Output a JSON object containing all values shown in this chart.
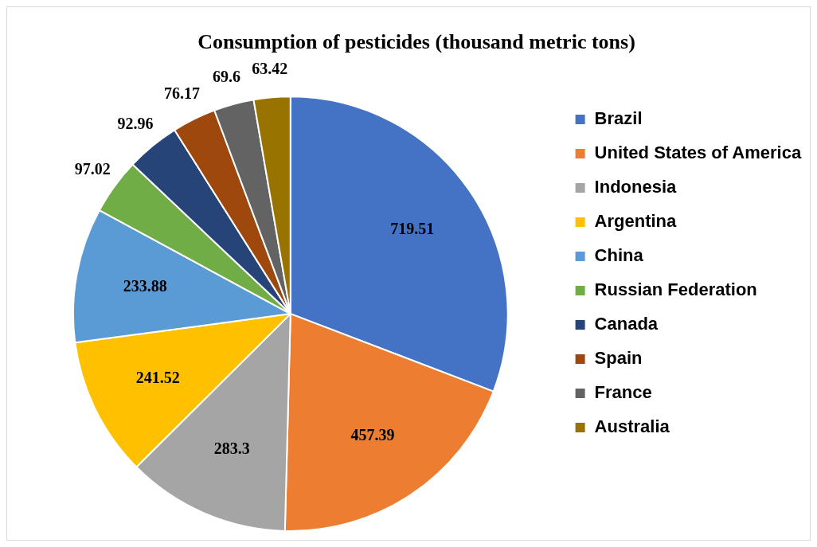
{
  "chart_data": {
    "type": "pie",
    "title": "Consumption of pesticides (thousand metric tons)",
    "categories": [
      "Brazil",
      "United States of America",
      "Indonesia",
      "Argentina",
      "China",
      "Russian Federation",
      "Canada",
      "Spain",
      "France",
      "Australia"
    ],
    "values": [
      719.51,
      457.39,
      283.3,
      241.52,
      233.88,
      97.02,
      92.96,
      76.17,
      69.6,
      63.42
    ],
    "colors": [
      "#4472c4",
      "#ed7d31",
      "#a5a5a5",
      "#ffc000",
      "#5b9bd5",
      "#70ad47",
      "#264478",
      "#9e480e",
      "#636363",
      "#997300"
    ],
    "data_labels": true,
    "legend": "right"
  }
}
